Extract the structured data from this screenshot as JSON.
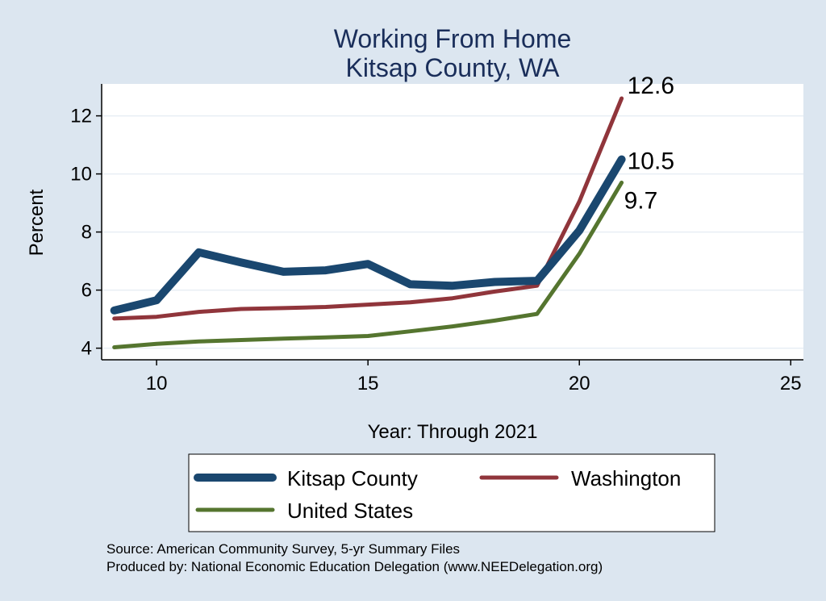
{
  "chart_data": {
    "type": "line",
    "title": [
      "Working From Home",
      "Kitsap County, WA"
    ],
    "xlabel": "Year: Through 2021",
    "ylabel": "Percent",
    "xlim": [
      8.7,
      25.3
    ],
    "ylim": [
      3.6,
      13.1
    ],
    "xticks": [
      10,
      15,
      20,
      25
    ],
    "yticks": [
      4,
      6,
      8,
      10,
      12
    ],
    "grid": true,
    "legend_position": "bottom",
    "series": [
      {
        "name": "Kitsap County",
        "color": "#1a476f",
        "weight": "thick",
        "x": [
          9,
          10,
          11,
          12,
          13,
          14,
          15,
          16,
          17,
          18,
          19,
          20,
          21
        ],
        "y": [
          5.3,
          5.65,
          7.3,
          6.95,
          6.63,
          6.68,
          6.9,
          6.2,
          6.15,
          6.28,
          6.32,
          8.05,
          10.5
        ],
        "end_label": "10.5"
      },
      {
        "name": "Washington",
        "color": "#90353b",
        "weight": "medium",
        "x": [
          9,
          10,
          11,
          12,
          13,
          14,
          15,
          16,
          17,
          18,
          19,
          20,
          21
        ],
        "y": [
          5.02,
          5.08,
          5.25,
          5.35,
          5.38,
          5.42,
          5.5,
          5.58,
          5.72,
          5.95,
          6.15,
          9.05,
          12.6
        ],
        "end_label": "12.6"
      },
      {
        "name": "United States",
        "color": "#55752f",
        "weight": "medium",
        "x": [
          9,
          10,
          11,
          12,
          13,
          14,
          15,
          16,
          17,
          18,
          19,
          20,
          21
        ],
        "y": [
          4.03,
          4.15,
          4.23,
          4.28,
          4.33,
          4.37,
          4.42,
          4.58,
          4.75,
          4.95,
          5.18,
          7.25,
          9.7
        ],
        "end_label": "9.7"
      }
    ]
  },
  "source_notes": [
    "Source: American Community Survey, 5-yr Summary Files",
    "Produced by: National Economic Education Delegation (www.NEEDelegation.org)"
  ]
}
